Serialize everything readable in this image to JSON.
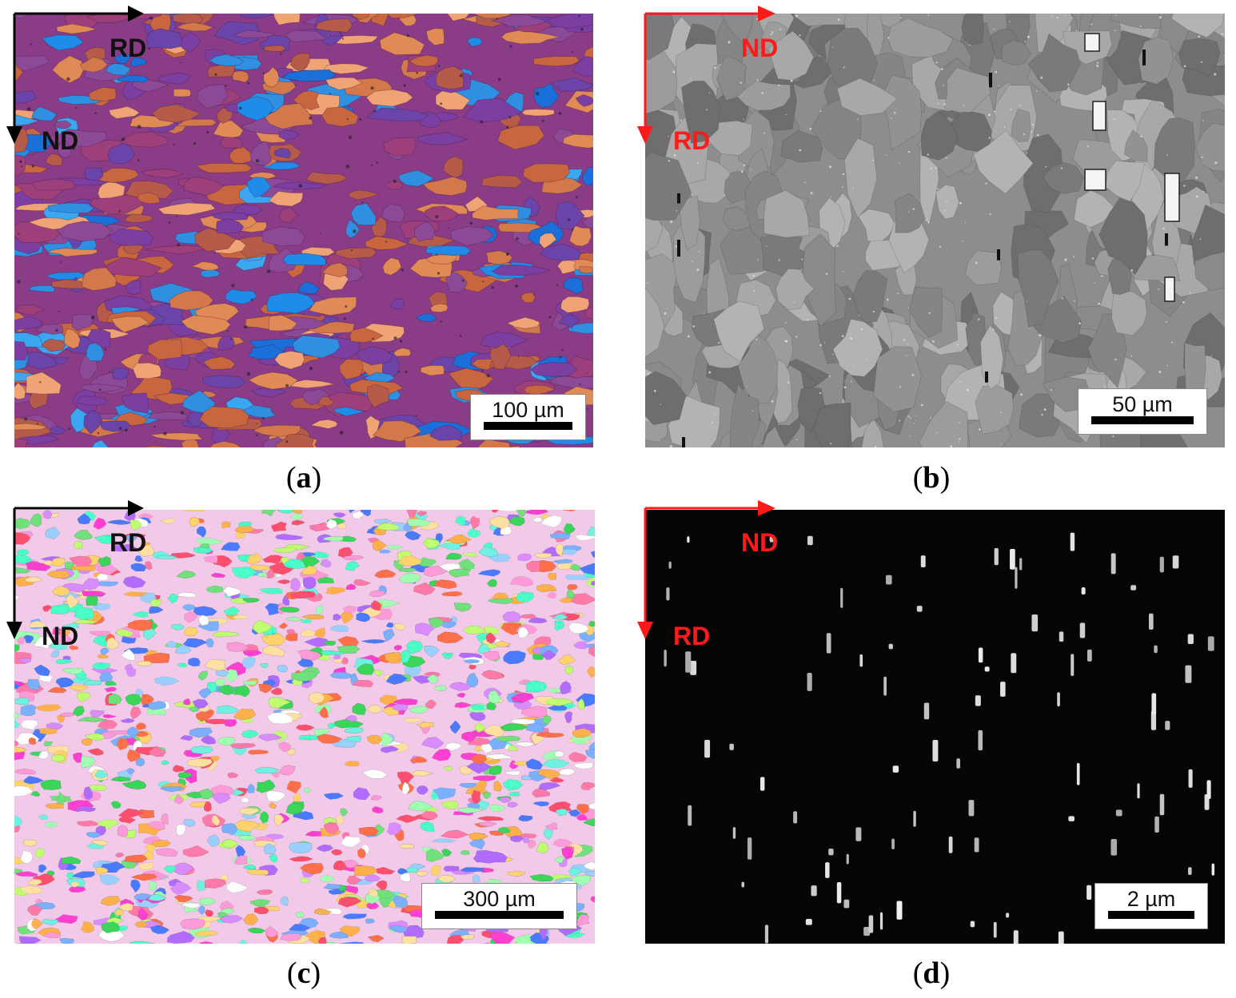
{
  "panels": [
    {
      "id": "a",
      "caption": "a",
      "axis_top": "RD",
      "axis_side": "ND",
      "axis_color": "#000000",
      "scale_label": "100 µm",
      "image_type": "optical micrograph (color-etched grains, orange/purple/blue)"
    },
    {
      "id": "b",
      "caption": "b",
      "axis_top": "ND",
      "axis_side": "RD",
      "axis_color": "#ff1a1a",
      "scale_label": "50 µm",
      "image_type": "SEM backscatter micrograph (grey grain contrast)"
    },
    {
      "id": "c",
      "caption": "c",
      "axis_top": "RD",
      "axis_side": "ND",
      "axis_color": "#000000",
      "scale_label": "300 µm",
      "image_type": "EBSD orientation map (multicolor grains)"
    },
    {
      "id": "d",
      "caption": "d",
      "axis_top": "ND",
      "axis_side": "RD",
      "axis_color": "#ff1a1a",
      "scale_label": "2 µm",
      "image_type": "SEM micrograph (bright precipitates on black matrix)"
    }
  ]
}
